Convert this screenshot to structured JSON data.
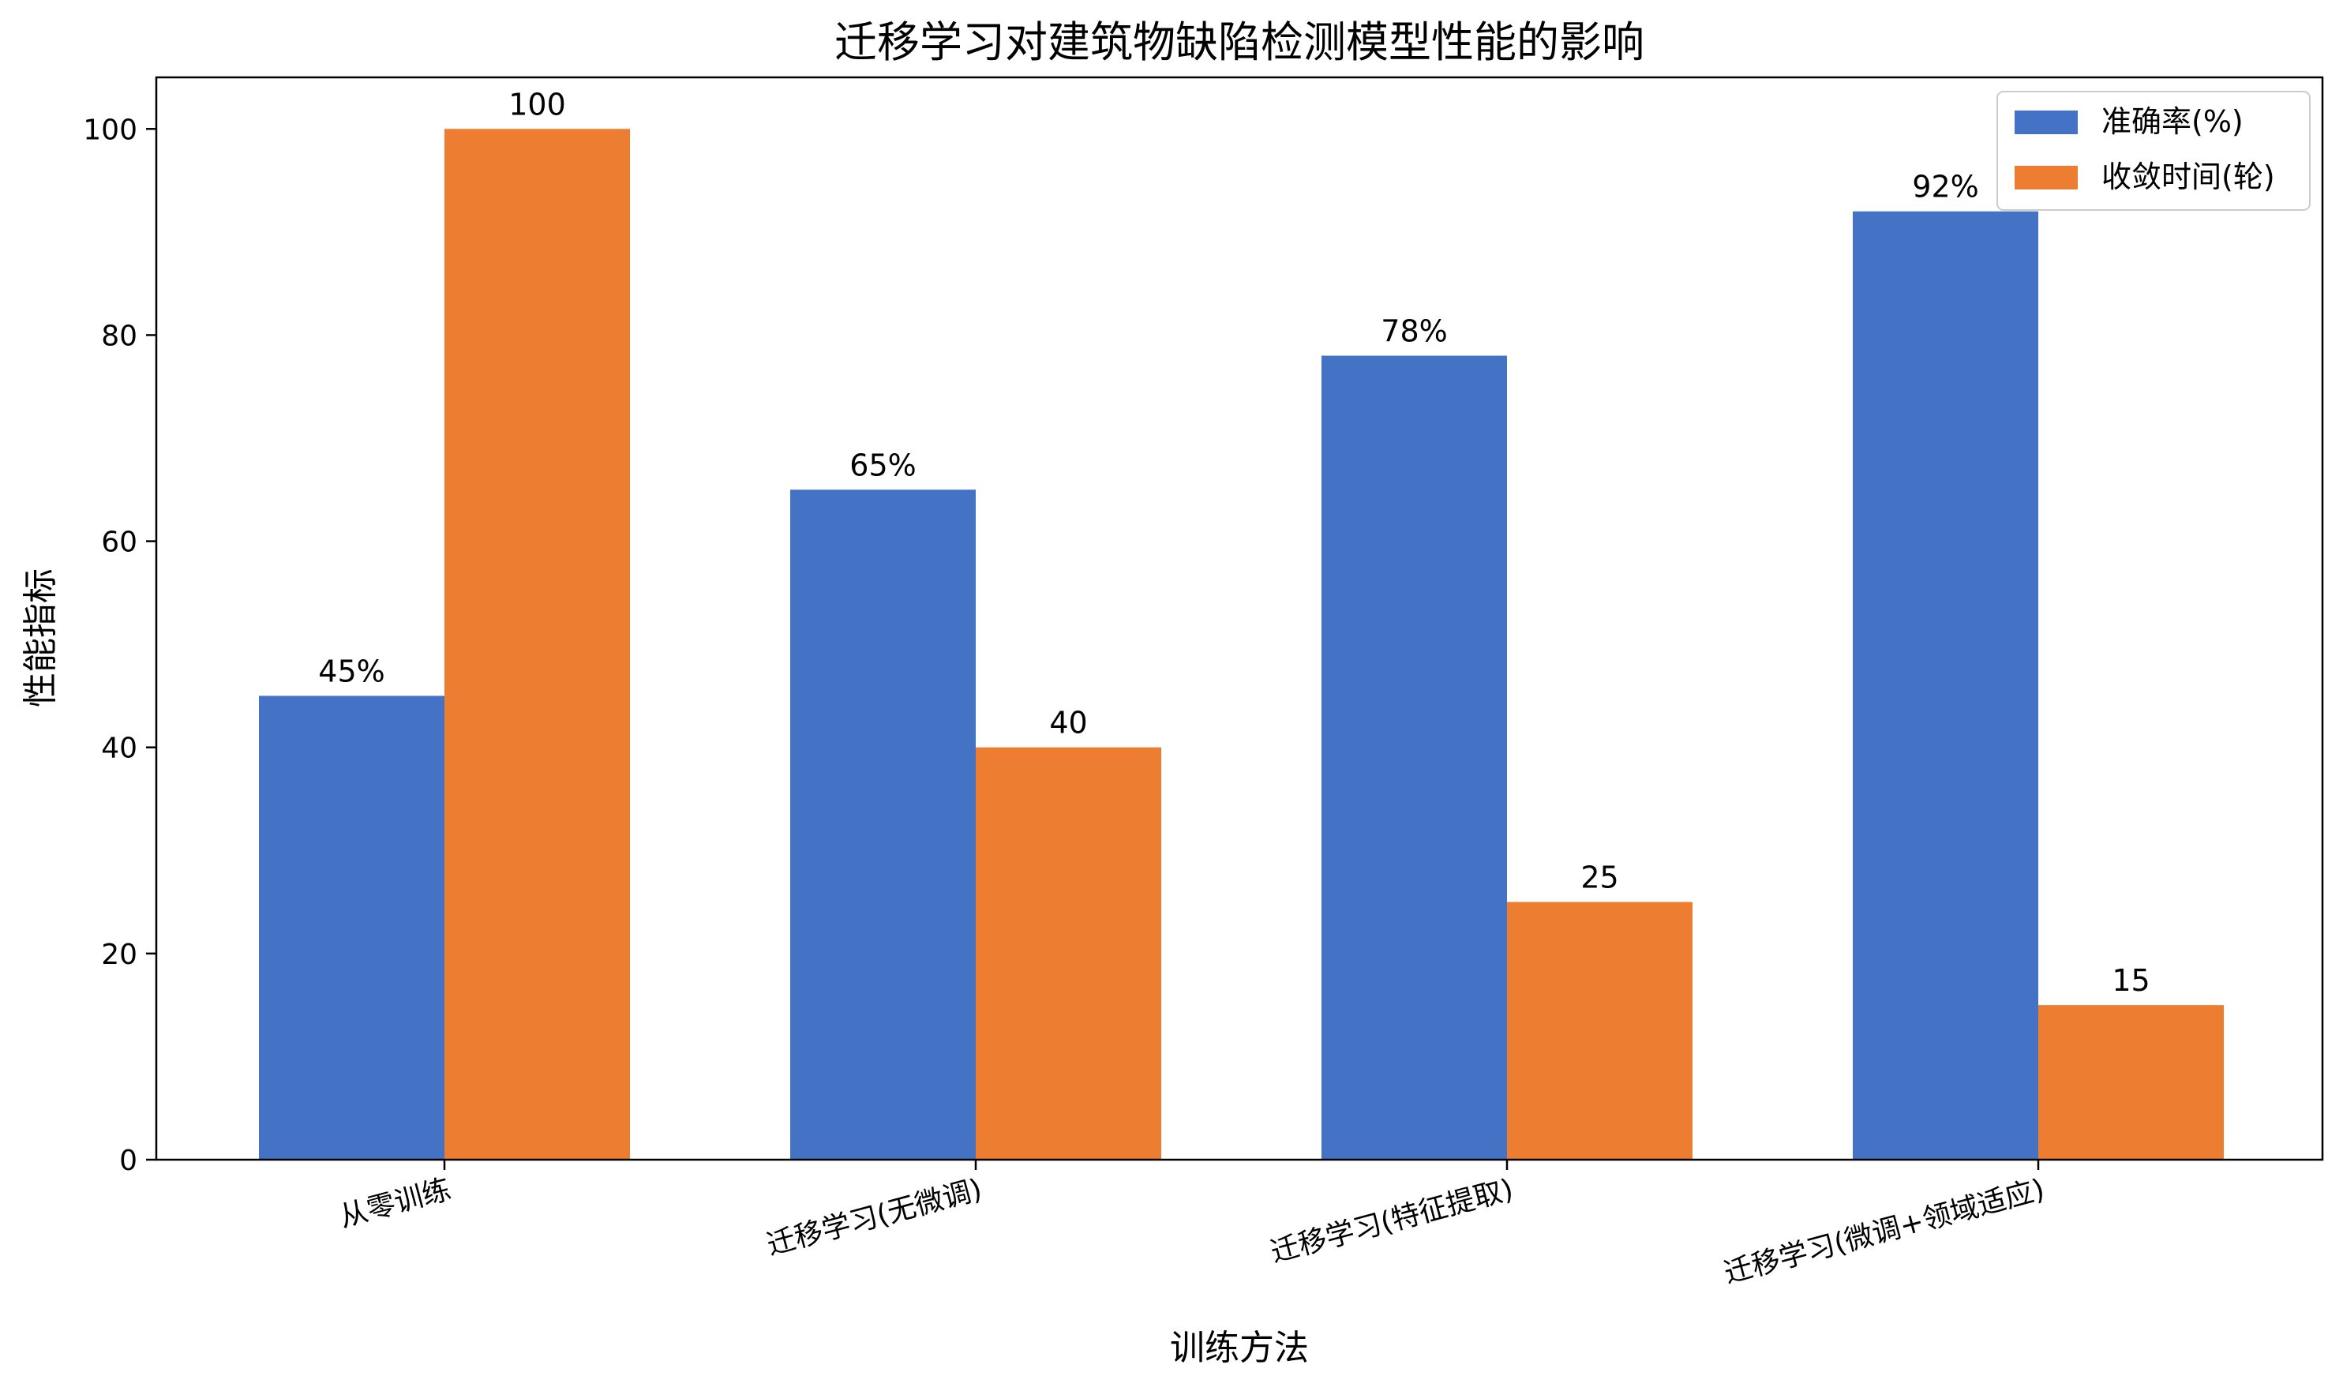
{
  "chart_data": {
    "type": "bar",
    "title": "迁移学习对建筑物缺陷检测模型性能的影响",
    "xlabel": "训练方法",
    "ylabel": "性能指标",
    "categories": [
      "从零训练",
      "迁移学习(无微调)",
      "迁移学习(特征提取)",
      "迁移学习(微调+领域适应)"
    ],
    "series": [
      {
        "name": "准确率(%)",
        "values": [
          45,
          65,
          78,
          92
        ],
        "labels": [
          "45%",
          "65%",
          "78%",
          "92%"
        ],
        "color": "#4472C4"
      },
      {
        "name": "收敛时间(轮)",
        "values": [
          100,
          40,
          25,
          15
        ],
        "labels": [
          "100",
          "40",
          "25",
          "15"
        ],
        "color": "#ED7D31"
      }
    ],
    "ylim": [
      0,
      105
    ],
    "yticks": [
      0,
      20,
      40,
      60,
      80,
      100
    ],
    "grid": false,
    "legend_position": "top-right"
  }
}
